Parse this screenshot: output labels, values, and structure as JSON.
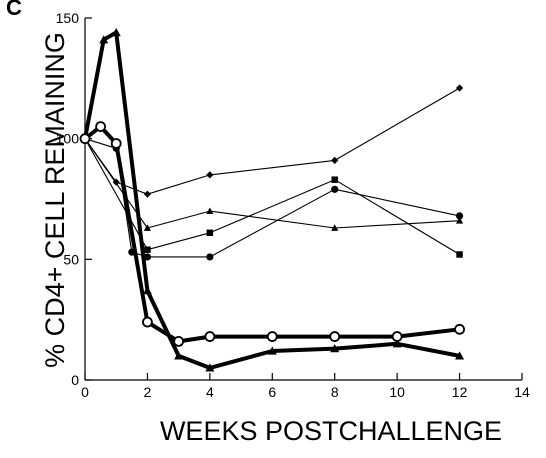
{
  "chart_data": {
    "type": "line",
    "panel_label": "C",
    "title": "",
    "xlabel": "WEEKS POSTCHALLENGE",
    "ylabel": "% CD4+ CELL REMAINING",
    "xlim": [
      0,
      14
    ],
    "ylim": [
      0,
      150
    ],
    "x_ticks": [
      0,
      2,
      4,
      6,
      8,
      10,
      12,
      14
    ],
    "y_ticks": [
      0,
      50,
      100,
      150
    ],
    "grid": false,
    "legend": "none",
    "colors": {
      "line": "#000000",
      "axis": "#000000"
    },
    "series": [
      {
        "marker": "diamond",
        "thick": false,
        "x": [
          0,
          1,
          2,
          4,
          8,
          12
        ],
        "y": [
          100,
          82,
          77,
          85,
          91,
          121
        ]
      },
      {
        "marker": "triangle",
        "thick": false,
        "x": [
          0,
          2,
          4,
          8,
          12
        ],
        "y": [
          100,
          63,
          70,
          63,
          66
        ]
      },
      {
        "marker": "square",
        "thick": false,
        "x": [
          0,
          2,
          4,
          8,
          12
        ],
        "y": [
          100,
          54,
          61,
          83,
          52
        ]
      },
      {
        "marker": "circle",
        "thick": false,
        "x": [
          0,
          1,
          1.5,
          2,
          4,
          8,
          12
        ],
        "y": [
          100,
          96,
          53,
          51,
          51,
          79,
          68
        ]
      },
      {
        "marker": "triangle",
        "thick": true,
        "x": [
          0,
          0.6,
          1,
          2,
          3,
          4,
          6,
          8,
          10,
          12
        ],
        "y": [
          100,
          141,
          144,
          37,
          10,
          5,
          12,
          13,
          15,
          10
        ]
      },
      {
        "marker": "circle-open",
        "thick": true,
        "x": [
          0,
          0.5,
          1,
          2,
          3,
          4,
          6,
          8,
          10,
          12
        ],
        "y": [
          100,
          105,
          98,
          24,
          16,
          18,
          18,
          18,
          18,
          21
        ]
      }
    ]
  }
}
